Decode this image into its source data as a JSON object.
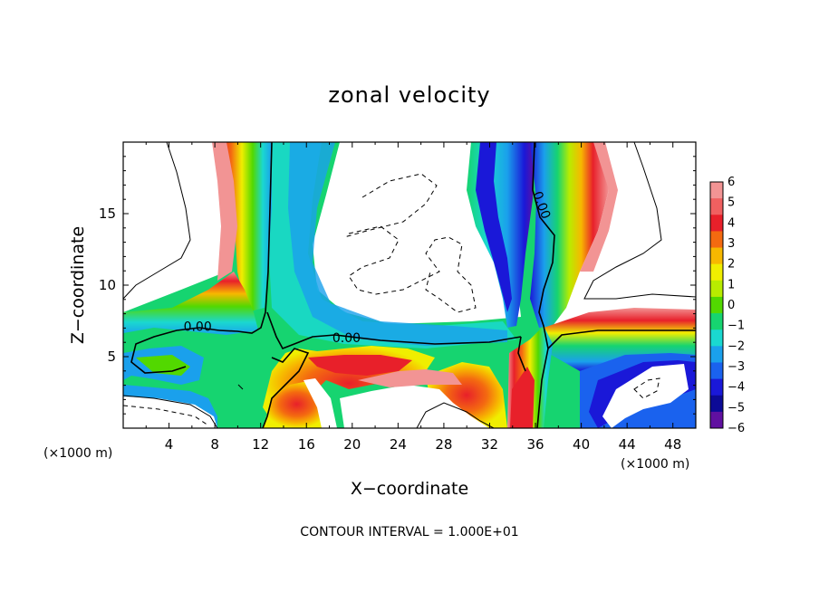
{
  "chart_data": {
    "type": "heatmap",
    "title": "zonal velocity",
    "xlabel": "X−coordinate",
    "ylabel": "Z−coordinate",
    "x_units_left": "(×1000 m)",
    "x_units_right": "(×1000 m)",
    "xlim": [
      0,
      50
    ],
    "ylim": [
      0,
      20
    ],
    "x_ticks": [
      4,
      8,
      12,
      16,
      20,
      24,
      28,
      32,
      36,
      40,
      44,
      48
    ],
    "y_ticks": [
      5,
      10,
      15
    ],
    "colorbar": {
      "levels": [
        6,
        5,
        4,
        3,
        2,
        1,
        0,
        -1,
        -2,
        -3,
        -4,
        -5,
        -6
      ],
      "level_labels": [
        "6",
        "5",
        "4",
        "3",
        "2",
        "1",
        "0",
        "−1",
        "−2",
        "−3",
        "−4",
        "−5",
        "−6"
      ],
      "colors": [
        "#f29494",
        "#f06060",
        "#e8202a",
        "#f46a10",
        "#f7b800",
        "#f0ee00",
        "#b8ec00",
        "#52d800",
        "#16d470",
        "#1ad8d0",
        "#1aa0ec",
        "#1a62ee",
        "#1a18d8",
        "#0c0a96",
        "#6010a0"
      ]
    },
    "contour_labels": [
      {
        "x": 6.5,
        "y": 6.8,
        "text": "0.00"
      },
      {
        "x": 19.5,
        "y": 6.0,
        "text": "0.00"
      },
      {
        "x": 36.2,
        "y": 15.5,
        "text": "0.00"
      }
    ],
    "note": "CONTOUR INTERVAL = 1.000E+01"
  }
}
